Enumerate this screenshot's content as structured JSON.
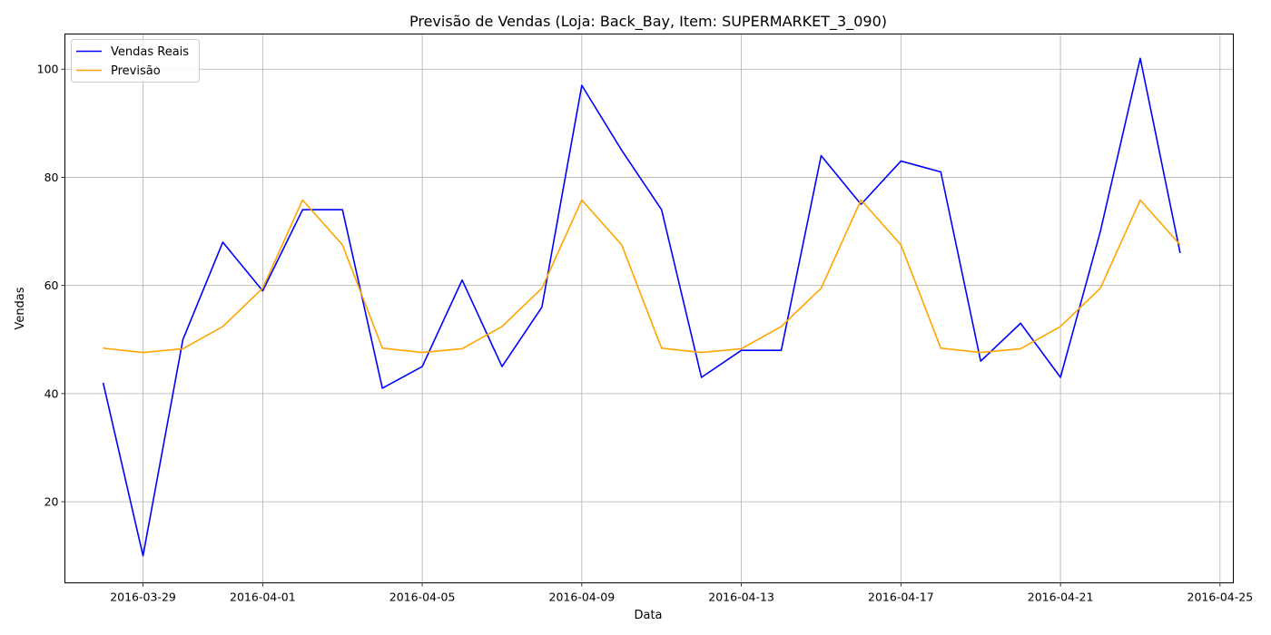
{
  "chart_data": {
    "type": "line",
    "title": "Previsão de Vendas (Loja: Back_Bay, Item: SUPERMARKET_3_090)",
    "xlabel": "Data",
    "ylabel": "Vendas",
    "x": [
      "2016-03-28",
      "2016-03-29",
      "2016-03-30",
      "2016-03-31",
      "2016-04-01",
      "2016-04-02",
      "2016-04-03",
      "2016-04-04",
      "2016-04-05",
      "2016-04-06",
      "2016-04-07",
      "2016-04-08",
      "2016-04-09",
      "2016-04-10",
      "2016-04-11",
      "2016-04-12",
      "2016-04-13",
      "2016-04-14",
      "2016-04-15",
      "2016-04-16",
      "2016-04-17",
      "2016-04-18",
      "2016-04-19",
      "2016-04-20",
      "2016-04-21",
      "2016-04-22",
      "2016-04-23",
      "2016-04-24"
    ],
    "xlim": [
      "2016-03-27T01:00",
      "2016-04-25T08:00"
    ],
    "x_ticks": [
      "2016-03-29",
      "2016-04-01",
      "2016-04-05",
      "2016-04-09",
      "2016-04-13",
      "2016-04-17",
      "2016-04-21",
      "2016-04-25"
    ],
    "ylim": [
      5,
      106.5
    ],
    "y_ticks": [
      20,
      40,
      60,
      80,
      100
    ],
    "grid": true,
    "legend": "upper-left",
    "series": [
      {
        "name": "Vendas Reais",
        "color": "#0000ff",
        "values": [
          42,
          10,
          50,
          68,
          59,
          74,
          74,
          41,
          45,
          61,
          45,
          56,
          97,
          85,
          74,
          43,
          48,
          48,
          84,
          75,
          83,
          81,
          46,
          53,
          43,
          70,
          102,
          66
        ]
      },
      {
        "name": "Previsão",
        "color": "#ffa500",
        "values": [
          48.4,
          47.6,
          48.3,
          52.4,
          59.5,
          75.8,
          67.5,
          48.4,
          47.6,
          48.3,
          52.4,
          59.5,
          75.8,
          67.5,
          48.4,
          47.6,
          48.3,
          52.4,
          59.5,
          75.8,
          67.5,
          48.4,
          47.6,
          48.3,
          52.4,
          59.5,
          75.8,
          67.5
        ]
      }
    ]
  }
}
